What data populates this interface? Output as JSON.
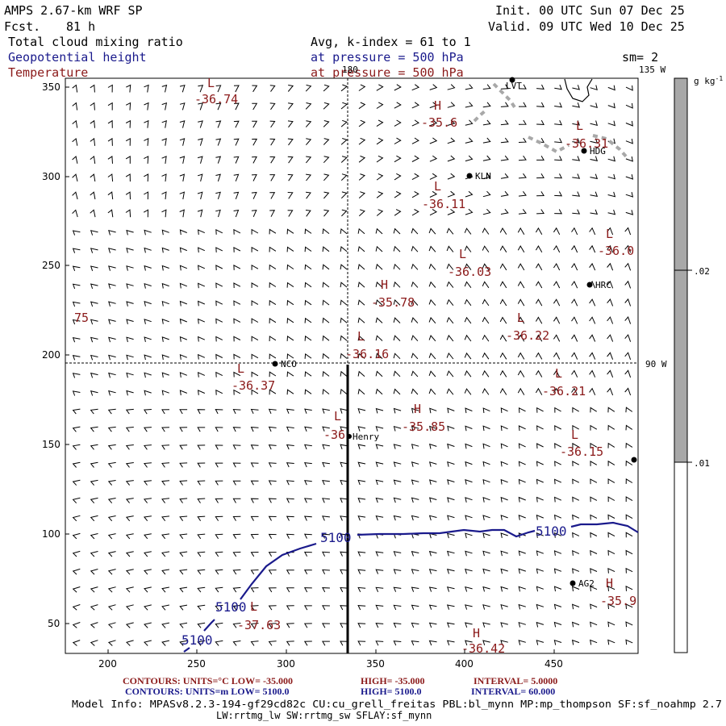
{
  "header": {
    "model": "AMPS 2.67-km WRF SP",
    "fcst_label": "Fcst.",
    "fcst_value": "81 h",
    "init": "Init. 00 UTC Sun 07 Dec 25",
    "valid": "Valid. 09 UTC Wed 10 Dec 25",
    "field1": "Total cloud mixing ratio",
    "field2": "Geopotential height",
    "field3": "Temperature",
    "avg_k": "Avg, k-index =  61 to   1",
    "pressure1": "at pressure =  500 hPa",
    "pressure2": "at pressure =  500 hPa",
    "sm": "sm= 2",
    "lon135": "135 W"
  },
  "map": {
    "lon180": "180",
    "lon90": "90 W",
    "x_ticks": [
      "200",
      "250",
      "300",
      "350",
      "400",
      "450"
    ],
    "y_ticks": [
      "350",
      "300",
      "250",
      "200",
      "150",
      "100",
      "50"
    ],
    "stations": [
      {
        "name": "LVT",
        "label": "LVT"
      },
      {
        "name": "HDG",
        "label": "HDG"
      },
      {
        "name": "KLN",
        "label": "KLN"
      },
      {
        "name": "HRC",
        "label": "HRC"
      },
      {
        "name": "NCO",
        "label": "NCO"
      },
      {
        "name": "Henry",
        "label": "Henry"
      },
      {
        "name": "AG2",
        "label": "AG2"
      }
    ],
    "extremes": [
      {
        "type": "L",
        "value": "-36.74"
      },
      {
        "type": "H",
        "value": "-35.6"
      },
      {
        "type": "L",
        "value": "-36.31"
      },
      {
        "type": "L",
        "value": "-36.11"
      },
      {
        "type": "L",
        "value": "-36.0"
      },
      {
        "type": "L",
        "value": "-36.03"
      },
      {
        "type": "H",
        "value": "-35.78"
      },
      {
        "type": "L",
        "value": "-36.22"
      },
      {
        "type": "L",
        "value": "-36.16"
      },
      {
        "type": "L",
        "value": "-36.37"
      },
      {
        "type": "L",
        "value": "-36.21"
      },
      {
        "type": "L",
        "value": "-36"
      },
      {
        "type": "H",
        "value": "-35.85"
      },
      {
        "type": "L",
        "value": "-36.15"
      },
      {
        "type": "L",
        "value": "-37.63"
      },
      {
        "type": "H",
        "value": "-35.9"
      },
      {
        "type": "H",
        "value": "-36.42"
      }
    ],
    "partial_label": "75",
    "contour_labels": [
      "5100",
      "5100",
      "5100",
      "5100"
    ]
  },
  "colorbar": {
    "units": "g kg",
    "units_exp": "-1",
    "ticks": [
      ".02",
      ".01"
    ]
  },
  "footer": {
    "temp_contours": "CONTOURS:  UNITS=°C  LOW= -35.000",
    "temp_high": "HIGH= -35.000",
    "temp_interval": "INTERVAL=   5.0000",
    "ght_contours": "CONTOURS:  UNITS=m  LOW=  5100.0",
    "ght_high": "HIGH=  5100.0",
    "ght_interval": "INTERVAL=   60.000",
    "model_info": "Model Info: MPASv8.2.3-194-gf29cd82c CU:cu_grell_freitas PBL:bl_mynn MP:mp_thompson SF:sf_noahmp 2.7",
    "model_info2": "LW:rrtmg_lw SW:rrtmg_sw SFLAY:sf_mynn"
  },
  "colors": {
    "temperature": "#8b1a1a",
    "height": "#1a1a8c",
    "cloud": "#a8a8a8"
  }
}
